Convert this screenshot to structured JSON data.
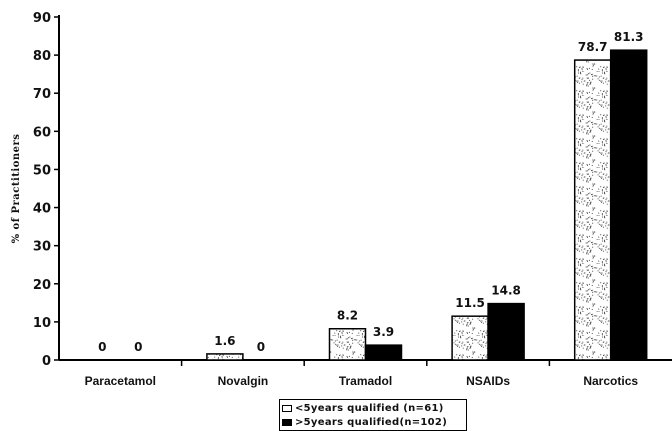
{
  "chart_data": {
    "type": "bar",
    "categories": [
      "Paracetamol",
      "Novalgin",
      "Tramadol",
      "NSAIDs",
      "Narcotics"
    ],
    "series": [
      {
        "name": "<5years qualified (n=61)",
        "values": [
          0,
          1.6,
          8.2,
          11.5,
          78.7
        ],
        "color": "#ffffff",
        "pattern": "stipple"
      },
      {
        "name": ">5years qualified(n=102)",
        "values": [
          0,
          0,
          3.9,
          14.8,
          81.3
        ],
        "color": "#000000",
        "pattern": "solid"
      }
    ],
    "data_labels": [
      [
        "0",
        "1.6",
        "8.2",
        "11.5",
        "78.7"
      ],
      [
        "0",
        "0",
        "3.9",
        "14.8",
        "81.3"
      ]
    ],
    "title": "",
    "xlabel": "",
    "ylabel": "% of Practitioners",
    "ylim": [
      0,
      90
    ],
    "yticks": [
      0,
      10,
      20,
      30,
      40,
      50,
      60,
      70,
      80,
      90
    ],
    "grid": false,
    "legend_position": "bottom-center"
  }
}
